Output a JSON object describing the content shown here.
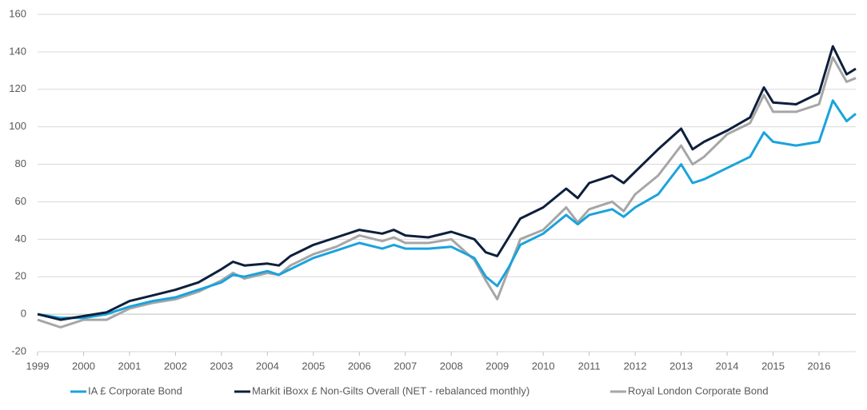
{
  "chart_data": {
    "type": "line",
    "x": [
      1999,
      1999.5,
      2000,
      2000.5,
      2001,
      2001.5,
      2002,
      2002.5,
      2003,
      2003.25,
      2003.5,
      2004,
      2004.25,
      2004.5,
      2005,
      2005.5,
      2006,
      2006.5,
      2006.75,
      2007,
      2007.5,
      2008,
      2008.5,
      2008.75,
      2009,
      2009.25,
      2009.5,
      2010,
      2010.5,
      2010.75,
      2011,
      2011.5,
      2011.75,
      2012,
      2012.5,
      2013,
      2013.25,
      2013.5,
      2014,
      2014.5,
      2014.8,
      2015,
      2015.5,
      2016,
      2016.3,
      2016.6,
      2016.8
    ],
    "series": [
      {
        "name": "IA £ Corporate Bond",
        "color": "#1aa3dd",
        "values": [
          0,
          -2,
          -2,
          0,
          4,
          7,
          9,
          13,
          17,
          21,
          20,
          23,
          21,
          24,
          30,
          34,
          38,
          35,
          37,
          35,
          35,
          36,
          30,
          20,
          15,
          25,
          37,
          43,
          53,
          48,
          53,
          56,
          52,
          57,
          64,
          80,
          70,
          72,
          78,
          84,
          97,
          92,
          90,
          92,
          114,
          103,
          107
        ]
      },
      {
        "name": "Markit iBoxx £ Non-Gilts Overall (NET - rebalanced monthly)",
        "color": "#0d1f3c",
        "values": [
          0,
          -3,
          -1,
          1,
          7,
          10,
          13,
          17,
          24,
          28,
          26,
          27,
          26,
          31,
          37,
          41,
          45,
          43,
          45,
          42,
          41,
          44,
          40,
          33,
          31,
          41,
          51,
          57,
          67,
          62,
          70,
          74,
          70,
          76,
          88,
          99,
          88,
          92,
          98,
          105,
          121,
          113,
          112,
          118,
          143,
          128,
          131
        ]
      },
      {
        "name": "Royal London Corporate Bond",
        "color": "#a6a6a6",
        "values": [
          -3,
          -7,
          -3,
          -3,
          3,
          6,
          8,
          12,
          18,
          22,
          19,
          22,
          21,
          26,
          32,
          36,
          42,
          39,
          41,
          38,
          38,
          40,
          29,
          18,
          8,
          24,
          40,
          45,
          57,
          49,
          56,
          60,
          55,
          64,
          74,
          90,
          80,
          84,
          96,
          102,
          117,
          108,
          108,
          112,
          137,
          124,
          126
        ]
      }
    ],
    "xlim": [
      1999,
      2016.8
    ],
    "xticks": [
      1999,
      2000,
      2001,
      2002,
      2003,
      2004,
      2005,
      2006,
      2007,
      2008,
      2009,
      2010,
      2011,
      2012,
      2013,
      2014,
      2015,
      2016
    ],
    "ylim": [
      -20,
      160
    ],
    "yticks": [
      -20,
      0,
      20,
      40,
      60,
      80,
      100,
      120,
      140,
      160
    ],
    "grid": true,
    "legend": "bottom"
  }
}
